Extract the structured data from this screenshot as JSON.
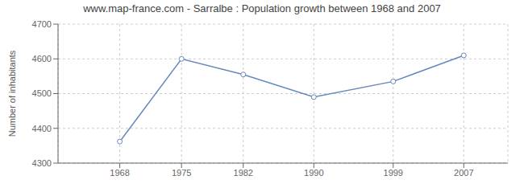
{
  "chart_data": {
    "type": "line",
    "title": "www.map-france.com - Sarralbe : Population growth between 1968 and 2007",
    "ylabel": "Number of inhabitants",
    "x": [
      1968,
      1975,
      1982,
      1990,
      1999,
      2007
    ],
    "values": [
      4362,
      4600,
      4555,
      4490,
      4535,
      4610
    ],
    "color": "#6688bb",
    "marker": "circle",
    "xlim": [
      1961,
      2012
    ],
    "xticks": [
      1968,
      1975,
      1982,
      1990,
      1999,
      2007
    ],
    "ylim": [
      4300,
      4700
    ],
    "yticks": [
      4300,
      4400,
      4500,
      4600,
      4700
    ],
    "grid": true
  }
}
